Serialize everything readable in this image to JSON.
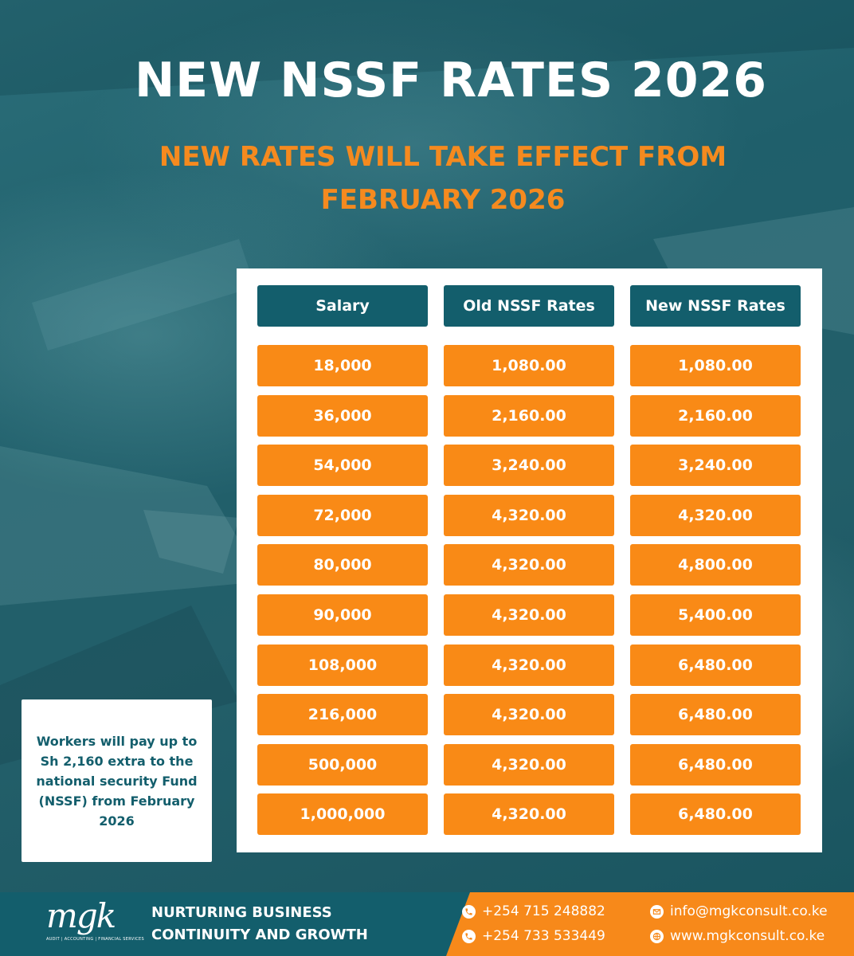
{
  "title": "NEW NSSF RATES 2026",
  "subtitle_line1": "NEW RATES WILL TAKE EFFECT FROM",
  "subtitle_line2": "FEBRUARY 2026",
  "table": {
    "headers": [
      "Salary",
      "Old NSSF Rates",
      "New NSSF Rates"
    ],
    "rows": [
      [
        "18,000",
        "1,080.00",
        "1,080.00"
      ],
      [
        "36,000",
        "2,160.00",
        "2,160.00"
      ],
      [
        "54,000",
        "3,240.00",
        "3,240.00"
      ],
      [
        "72,000",
        "4,320.00",
        "4,320.00"
      ],
      [
        "80,000",
        "4,320.00",
        "4,800.00"
      ],
      [
        "90,000",
        "4,320.00",
        "5,400.00"
      ],
      [
        "108,000",
        "4,320.00",
        "6,480.00"
      ],
      [
        "216,000",
        "4,320.00",
        "6,480.00"
      ],
      [
        "500,000",
        "4,320.00",
        "6,480.00"
      ],
      [
        "1,000,000",
        "4,320.00",
        "6,480.00"
      ]
    ]
  },
  "note": "Workers will pay up to Sh 2,160 extra to the national security Fund (NSSF) from February 2026",
  "footer": {
    "logo": "mgk",
    "logo_tagline": "AUDIT | ACCOUNTING | FINANCIAL SERVICES",
    "slogan_line1": "NURTURING BUSINESS",
    "slogan_line2": "CONTINUITY AND GROWTH",
    "phone1": "+254 715 248882",
    "phone2": "+254 733 533449",
    "email": "info@mgkconsult.co.ke",
    "website": "www.mgkconsult.co.ke"
  },
  "colors": {
    "teal": "#135e6c",
    "orange": "#f98a16",
    "white": "#ffffff"
  },
  "icons": [
    "phone-icon",
    "email-icon",
    "globe-icon"
  ]
}
